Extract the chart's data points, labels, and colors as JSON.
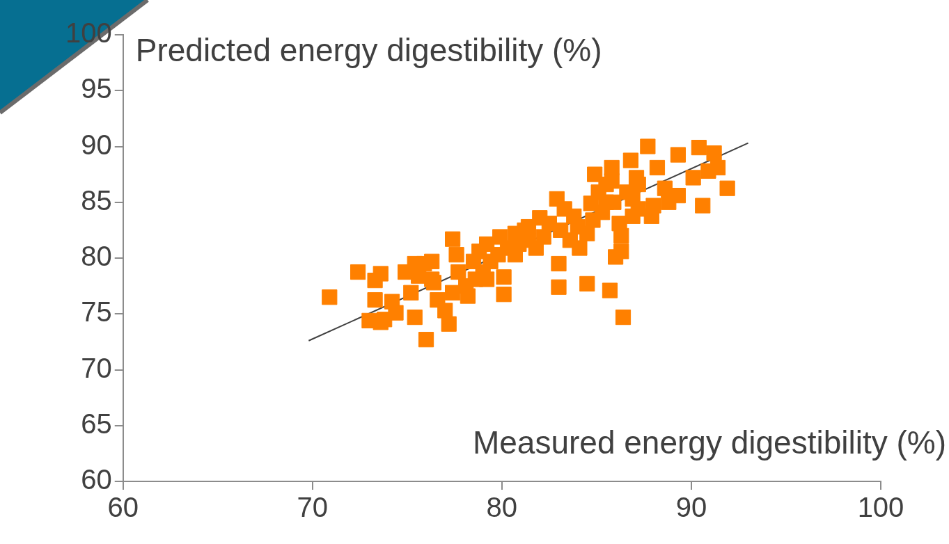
{
  "chart_data": {
    "type": "scatter",
    "xlabel": "Measured energy digestibility (%)",
    "ylabel": "Predicted energy digestibility (%)",
    "xlim": [
      60,
      100
    ],
    "xticks": [
      60,
      70,
      80,
      90,
      100
    ],
    "ylim": [
      60,
      100
    ],
    "yticks": [
      60,
      65,
      70,
      75,
      80,
      85,
      90,
      95,
      100
    ],
    "grid": false,
    "legend": false,
    "series": [
      {
        "type": "scatter",
        "color": "#ff8000",
        "marker": "square",
        "x": [
          70.9,
          72.4,
          73.3,
          73.6,
          73.3,
          73.0,
          73.6,
          73.8,
          74.2,
          74.4,
          74.9,
          75.4,
          75.4,
          75.2,
          76.0,
          75.9,
          76.3,
          76.4,
          76.6,
          77.0,
          77.2,
          77.4,
          77.6,
          77.7,
          78.1,
          78.2,
          78.5,
          78.8,
          79.0,
          79.2,
          79.4,
          79.8,
          79.9,
          80.1,
          80.1,
          80.3,
          80.7,
          80.9,
          81.2,
          81.4,
          81.8,
          82.0,
          82.2,
          82.5,
          82.9,
          83.0,
          83.0,
          83.1,
          83.3,
          83.6,
          83.8,
          84.1,
          84.5,
          84.5,
          84.7,
          84.9,
          85.1,
          85.3,
          85.5,
          85.7,
          85.8,
          85.9,
          86.0,
          86.2,
          86.3,
          86.3,
          86.4,
          86.6,
          86.8,
          86.9,
          87.1,
          87.7,
          87.9,
          88.0,
          88.2,
          88.6,
          88.8,
          89.3,
          89.3,
          90.1,
          90.4,
          90.6,
          90.9,
          91.2,
          91.4,
          91.9,
          85.5,
          86.9,
          87.2,
          84.8,
          79.2,
          76.3,
          78.6,
          77.4,
          75.6,
          81.4,
          84.0,
          87.2,
          85.8,
          80.7
        ],
        "values": [
          76.5,
          78.75,
          78.0,
          78.6,
          76.25,
          74.4,
          74.25,
          74.5,
          76.1,
          75.1,
          78.75,
          79.5,
          74.7,
          76.9,
          72.7,
          79.5,
          79.7,
          77.8,
          76.25,
          75.3,
          74.1,
          81.7,
          80.3,
          78.75,
          77.5,
          76.6,
          79.7,
          80.6,
          78.75,
          81.25,
          79.7,
          80.3,
          81.9,
          78.3,
          76.75,
          80.9,
          82.2,
          81.25,
          82.5,
          81.6,
          80.9,
          83.6,
          81.9,
          83.1,
          85.3,
          79.5,
          77.4,
          82.5,
          84.4,
          81.6,
          83.75,
          80.9,
          77.7,
          82.2,
          84.9,
          87.5,
          85.9,
          84.1,
          86.6,
          77.1,
          88.1,
          85.0,
          80.1,
          83.1,
          82.0,
          80.6,
          74.7,
          85.9,
          88.75,
          83.75,
          87.2,
          90.0,
          83.75,
          84.7,
          88.1,
          86.25,
          85.0,
          89.25,
          85.6,
          87.2,
          89.9,
          84.7,
          87.8,
          89.4,
          88.1,
          86.25,
          85.0,
          85.3,
          84.4,
          83.4,
          78.1,
          78.1,
          78.1,
          76.9,
          78.4,
          82.8,
          82.8,
          86.6,
          86.9,
          80.3
        ]
      },
      {
        "type": "line",
        "color": "#404040",
        "marker": "none",
        "line_style": "solid",
        "x": [
          69.8,
          93.0
        ],
        "values": [
          72.6,
          90.3
        ]
      }
    ]
  }
}
